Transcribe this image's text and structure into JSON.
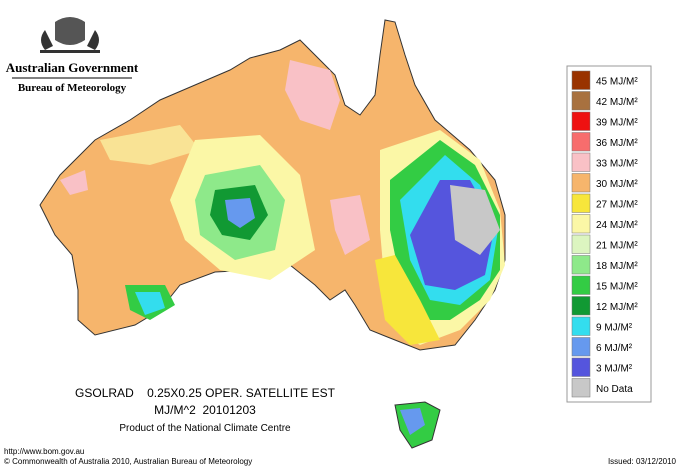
{
  "header": {
    "title": "Australian Government",
    "subtitle": "Bureau of Meteorology"
  },
  "legend": {
    "items": [
      {
        "label": "45 MJ/M²",
        "color": "#993300"
      },
      {
        "label": "42 MJ/M²",
        "color": "#a8713f"
      },
      {
        "label": "39 MJ/M²",
        "color": "#ee1111"
      },
      {
        "label": "36 MJ/M²",
        "color": "#f76d6d"
      },
      {
        "label": "33 MJ/M²",
        "color": "#f9c1c6"
      },
      {
        "label": "30 MJ/M²",
        "color": "#f6b56c"
      },
      {
        "label": "27 MJ/M²",
        "color": "#f7e63b"
      },
      {
        "label": "24 MJ/M²",
        "color": "#fbf7a6"
      },
      {
        "label": "21 MJ/M²",
        "color": "#dcf5c0"
      },
      {
        "label": "18 MJ/M²",
        "color": "#8ee98a"
      },
      {
        "label": "15 MJ/M²",
        "color": "#33cc44"
      },
      {
        "label": "12 MJ/M²",
        "color": "#119933"
      },
      {
        "label": "9 MJ/M²",
        "color": "#33ddee"
      },
      {
        "label": "6 MJ/M²",
        "color": "#6699ee"
      },
      {
        "label": "3 MJ/M²",
        "color": "#5555dd"
      },
      {
        "label": "No Data",
        "color": "#c8c8c8"
      }
    ]
  },
  "caption": {
    "line1": "GSOLRAD    0.25X0.25 OPER. SATELLITE EST",
    "line2": "MJ/M^2  20101203",
    "line3": "Product of the National Climate Centre"
  },
  "footer": {
    "url": "http://www.bom.gov.au",
    "copyright": "© Commonwealth of Australia 2010, Australian Bureau of Meteorology",
    "issued": "Issued: 03/12/2010"
  }
}
